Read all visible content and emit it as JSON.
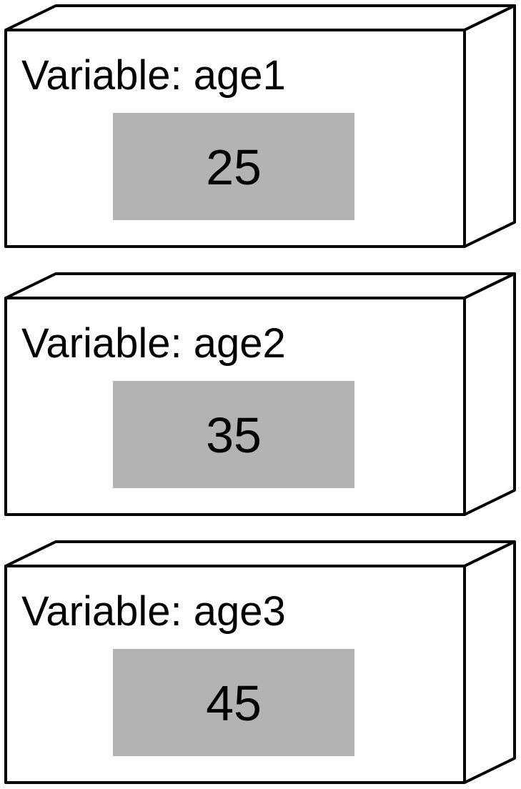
{
  "variables": [
    {
      "label": "Variable: age1",
      "value": "25"
    },
    {
      "label": "Variable: age2",
      "value": "35"
    },
    {
      "label": "Variable: age3",
      "value": "45"
    }
  ],
  "colors": {
    "stroke": "#000000",
    "face": "#ffffff",
    "value_fill": "#b3b3b3"
  }
}
